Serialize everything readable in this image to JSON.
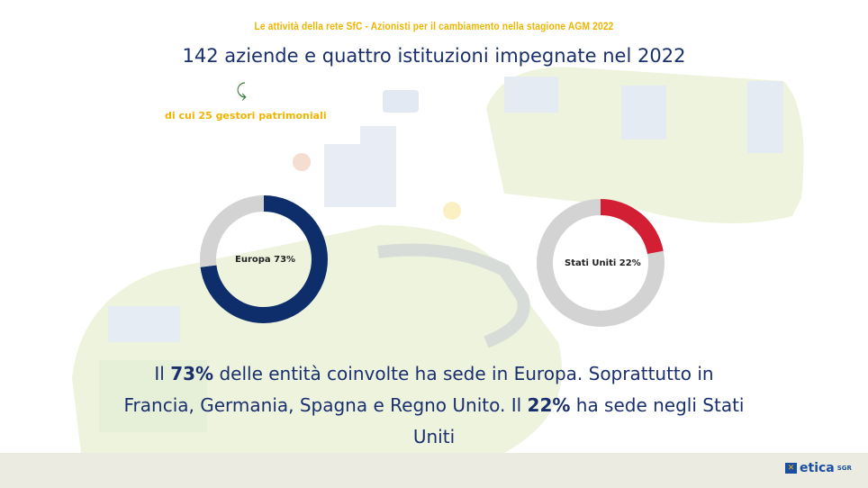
{
  "header": {
    "kicker": "Le attività della rete SfC - Azionisti per il cambiamento nella stagione AGM 2022",
    "title": "142 aziende e quattro istituzioni impegnate nel 2022",
    "subnote": "di cui 25 gestori patrimoniali"
  },
  "chart_data": [
    {
      "type": "pie",
      "variant": "donut",
      "label": "Europa 73%",
      "values": [
        73,
        27
      ],
      "colors": [
        "#0d2d6b",
        "#d3d3d3"
      ]
    },
    {
      "type": "pie",
      "variant": "donut",
      "label": "Stati Uniti 22%",
      "values": [
        22,
        78
      ],
      "colors": [
        "#d21f34",
        "#d3d3d3"
      ]
    }
  ],
  "body": {
    "p1": "Il ",
    "b1": "73%",
    "p2": " delle entità coinvolte ha sede in Europa. Soprattutto in Francia, Germania, Spagna e Regno Unito. Il ",
    "b2": "22%",
    "p3": " ha sede negli Stati Uniti"
  },
  "footer": {
    "logo_text": "etica",
    "logo_suffix": "SGR"
  }
}
